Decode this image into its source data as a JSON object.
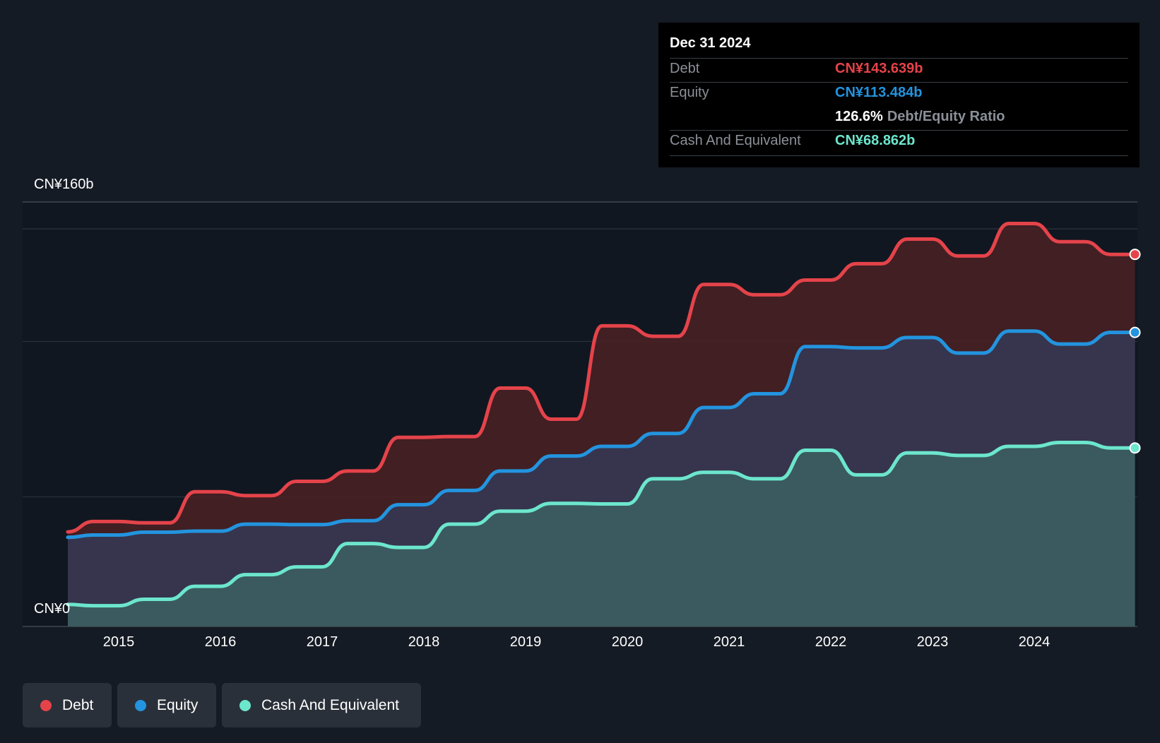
{
  "tooltip": {
    "date": "Dec 31 2024",
    "rows": [
      {
        "label": "Debt",
        "value": "CN¥143.639b",
        "color": "#e5434a"
      },
      {
        "label": "Equity",
        "value": "CN¥113.484b",
        "color": "#2394df"
      }
    ],
    "ratio_value": "126.6%",
    "ratio_label": "Debt/Equity Ratio",
    "cash_label": "Cash And Equivalent",
    "cash_value": "CN¥68.862b",
    "cash_color": "#6ce6cd"
  },
  "chart_data": {
    "type": "area",
    "y_top_label": "CN¥160b",
    "y_bottom_label": "CN¥0",
    "ylim": [
      0,
      160
    ],
    "x_ticks": [
      "2015",
      "2016",
      "2017",
      "2018",
      "2019",
      "2020",
      "2021",
      "2022",
      "2023",
      "2024"
    ],
    "x_tick_values": [
      2015.0,
      2016.0,
      2017.0,
      2018.0,
      2019.0,
      2020.0,
      2021.0,
      2022.0,
      2023.0,
      2024.0
    ],
    "xlim": [
      2014.5,
      2025.0
    ],
    "x": [
      2014.5,
      2014.75,
      2015.0,
      2015.25,
      2015.5,
      2015.75,
      2016.0,
      2016.25,
      2016.5,
      2016.75,
      2017.0,
      2017.25,
      2017.5,
      2017.75,
      2018.0,
      2018.25,
      2018.5,
      2018.75,
      2019.0,
      2019.25,
      2019.5,
      2019.75,
      2020.0,
      2020.25,
      2020.5,
      2020.75,
      2021.0,
      2021.25,
      2021.5,
      2021.75,
      2022.0,
      2022.25,
      2022.5,
      2022.75,
      2023.0,
      2023.25,
      2023.5,
      2023.75,
      2024.0,
      2024.25,
      2024.5,
      2024.75,
      2024.99
    ],
    "series": [
      {
        "name": "Debt",
        "color": "#e5434a",
        "fill": "#4a2125",
        "values": [
          36.5,
          40.5,
          40.5,
          40,
          40,
          52,
          52,
          50.5,
          50.5,
          56,
          56,
          60,
          60,
          73,
          73,
          73.3,
          73.3,
          92,
          92,
          80,
          80,
          116,
          116,
          112,
          112,
          132,
          132,
          128,
          128,
          133.7,
          133.7,
          140,
          140,
          149.5,
          149.5,
          143,
          143,
          155.5,
          155.5,
          148.5,
          148.5,
          143.6,
          143.6
        ]
      },
      {
        "name": "Equity",
        "color": "#2394df",
        "fill": "#353a55",
        "values": [
          34.4,
          35.3,
          35.3,
          36.4,
          36.4,
          36.8,
          36.8,
          39.5,
          39.5,
          39.3,
          39.3,
          40.8,
          40.8,
          47,
          47,
          52.5,
          52.5,
          60,
          60,
          65.8,
          65.8,
          69.5,
          69.5,
          74.5,
          74.5,
          84.5,
          84.5,
          89.8,
          89.8,
          108,
          108,
          107.5,
          107.5,
          111.5,
          111.5,
          105.5,
          105.5,
          114,
          114,
          109,
          109,
          113.5,
          113.5
        ]
      },
      {
        "name": "Cash And Equivalent",
        "color": "#6ce6cd",
        "fill": "#3b6063",
        "values": [
          8.5,
          8,
          8,
          10.5,
          10.5,
          15.5,
          15.5,
          20,
          20,
          23,
          23,
          32,
          32,
          30.5,
          30.5,
          39.5,
          39.5,
          44.5,
          44.5,
          47.5,
          47.5,
          47.3,
          47.3,
          57,
          57,
          59.5,
          59.5,
          57,
          57,
          68,
          68,
          58.5,
          58.5,
          67,
          67,
          66,
          66,
          69.5,
          69.5,
          71,
          71,
          68.9,
          68.9
        ]
      }
    ],
    "legend": [
      "Debt",
      "Equity",
      "Cash And Equivalent"
    ],
    "legend_position": "bottom-left",
    "grid": true
  }
}
